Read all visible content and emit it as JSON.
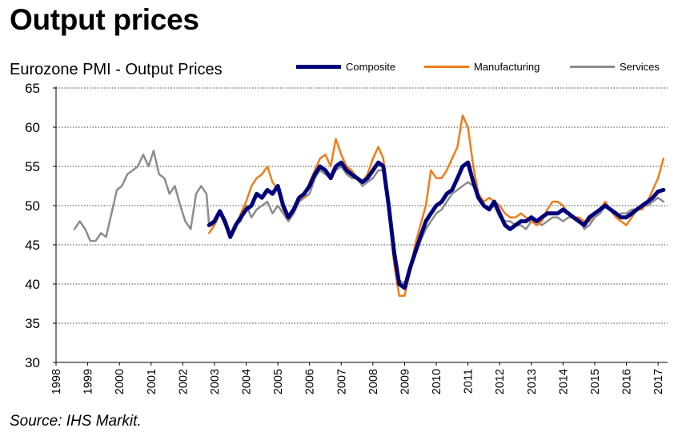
{
  "page": {
    "title": "Output prices",
    "source": "Source: IHS Markit."
  },
  "chart_data": {
    "type": "line",
    "title": "Eurozone PMI - Output Prices",
    "xlabel": "",
    "ylabel": "",
    "xlim": [
      1998,
      2017.3
    ],
    "ylim": [
      30,
      65
    ],
    "y_ticks": [
      30,
      35,
      40,
      45,
      50,
      55,
      60,
      65
    ],
    "x_ticks": [
      "1998",
      "1999",
      "2000",
      "2001",
      "2002",
      "2003",
      "2004",
      "2005",
      "2006",
      "2007",
      "2008",
      "2009",
      "2010",
      "2011",
      "2012",
      "2013",
      "2014",
      "2015",
      "2016",
      "2017"
    ],
    "grid": "horizontal-dotted",
    "legend_position": "top-right",
    "series": [
      {
        "name": "Composite",
        "color": "#00007a",
        "x": [
          2002.83,
          2003.0,
          2003.17,
          2003.33,
          2003.5,
          2003.67,
          2003.83,
          2004.0,
          2004.17,
          2004.33,
          2004.5,
          2004.67,
          2004.83,
          2005.0,
          2005.17,
          2005.33,
          2005.5,
          2005.67,
          2005.83,
          2006.0,
          2006.17,
          2006.33,
          2006.5,
          2006.67,
          2006.83,
          2007.0,
          2007.17,
          2007.33,
          2007.5,
          2007.67,
          2007.83,
          2008.0,
          2008.17,
          2008.33,
          2008.5,
          2008.67,
          2008.83,
          2009.0,
          2009.17,
          2009.33,
          2009.5,
          2009.67,
          2009.83,
          2010.0,
          2010.17,
          2010.33,
          2010.5,
          2010.67,
          2010.83,
          2011.0,
          2011.17,
          2011.33,
          2011.5,
          2011.67,
          2011.83,
          2012.0,
          2012.17,
          2012.33,
          2012.5,
          2012.67,
          2012.83,
          2013.0,
          2013.17,
          2013.33,
          2013.5,
          2013.67,
          2013.83,
          2014.0,
          2014.17,
          2014.33,
          2014.5,
          2014.67,
          2014.83,
          2015.0,
          2015.17,
          2015.33,
          2015.5,
          2015.67,
          2015.83,
          2016.0,
          2016.17,
          2016.33,
          2016.5,
          2016.67,
          2016.83,
          2017.0,
          2017.17
        ],
        "values": [
          47.5,
          48.0,
          49.3,
          48.0,
          46.0,
          47.5,
          48.5,
          49.5,
          50.0,
          51.5,
          51.0,
          52.0,
          51.5,
          52.5,
          50.0,
          48.5,
          49.5,
          51.0,
          51.5,
          52.5,
          54.0,
          55.0,
          54.5,
          53.5,
          55.0,
          55.5,
          54.5,
          54.0,
          53.5,
          53.0,
          53.5,
          54.5,
          55.5,
          55.0,
          50.0,
          44.0,
          40.0,
          39.5,
          42.0,
          44.0,
          46.0,
          48.0,
          49.0,
          50.0,
          50.5,
          51.5,
          52.0,
          53.5,
          55.0,
          55.5,
          53.0,
          51.0,
          50.0,
          49.5,
          50.5,
          49.0,
          47.5,
          47.0,
          47.5,
          48.0,
          48.0,
          48.5,
          48.0,
          48.5,
          49.0,
          49.0,
          49.0,
          49.5,
          49.0,
          48.5,
          48.0,
          47.5,
          48.5,
          49.0,
          49.5,
          50.0,
          49.5,
          49.0,
          48.5,
          48.5,
          49.0,
          49.5,
          50.0,
          50.5,
          51.0,
          51.8,
          52.0
        ]
      },
      {
        "name": "Manufacturing",
        "color": "#f07d1a",
        "x": [
          2002.83,
          2003.0,
          2003.17,
          2003.33,
          2003.5,
          2003.67,
          2003.83,
          2004.0,
          2004.17,
          2004.33,
          2004.5,
          2004.67,
          2004.83,
          2005.0,
          2005.17,
          2005.33,
          2005.5,
          2005.67,
          2005.83,
          2006.0,
          2006.17,
          2006.33,
          2006.5,
          2006.67,
          2006.83,
          2007.0,
          2007.17,
          2007.33,
          2007.5,
          2007.67,
          2007.83,
          2008.0,
          2008.17,
          2008.33,
          2008.5,
          2008.67,
          2008.83,
          2009.0,
          2009.17,
          2009.33,
          2009.5,
          2009.67,
          2009.83,
          2010.0,
          2010.17,
          2010.33,
          2010.5,
          2010.67,
          2010.83,
          2011.0,
          2011.17,
          2011.33,
          2011.5,
          2011.67,
          2011.83,
          2012.0,
          2012.17,
          2012.33,
          2012.5,
          2012.67,
          2012.83,
          2013.0,
          2013.17,
          2013.33,
          2013.5,
          2013.67,
          2013.83,
          2014.0,
          2014.17,
          2014.33,
          2014.5,
          2014.67,
          2014.83,
          2015.0,
          2015.17,
          2015.33,
          2015.5,
          2015.67,
          2015.83,
          2016.0,
          2016.17,
          2016.33,
          2016.5,
          2016.67,
          2016.83,
          2017.0,
          2017.17
        ],
        "values": [
          46.5,
          47.5,
          49.0,
          48.0,
          46.0,
          47.0,
          49.0,
          50.5,
          52.5,
          53.5,
          54.0,
          55.0,
          53.0,
          52.0,
          49.5,
          48.5,
          49.5,
          51.0,
          51.0,
          53.0,
          54.5,
          56.0,
          56.5,
          55.0,
          58.5,
          56.5,
          55.0,
          54.5,
          53.5,
          53.0,
          54.0,
          56.0,
          57.5,
          56.0,
          50.0,
          42.5,
          38.5,
          38.5,
          41.5,
          45.0,
          47.5,
          50.0,
          54.5,
          53.5,
          53.5,
          54.5,
          56.0,
          57.5,
          61.5,
          60.0,
          55.0,
          51.5,
          50.5,
          51.0,
          50.5,
          50.0,
          49.0,
          48.5,
          48.5,
          49.0,
          48.5,
          48.0,
          47.5,
          48.0,
          49.5,
          50.5,
          50.5,
          50.0,
          49.0,
          48.5,
          48.5,
          48.0,
          48.0,
          49.0,
          49.5,
          50.5,
          49.5,
          48.5,
          48.0,
          47.5,
          48.5,
          49.5,
          49.5,
          50.5,
          52.0,
          53.5,
          56.0
        ]
      },
      {
        "name": "Services",
        "color": "#8c8c8c",
        "x": [
          1998.58,
          1998.75,
          1998.92,
          1999.08,
          1999.25,
          1999.42,
          1999.58,
          1999.75,
          1999.92,
          2000.08,
          2000.25,
          2000.42,
          2000.58,
          2000.75,
          2000.92,
          2001.08,
          2001.25,
          2001.42,
          2001.58,
          2001.75,
          2001.92,
          2002.08,
          2002.25,
          2002.42,
          2002.58,
          2002.75,
          2002.83,
          2003.0,
          2003.17,
          2003.33,
          2003.5,
          2003.67,
          2003.83,
          2004.0,
          2004.17,
          2004.33,
          2004.5,
          2004.67,
          2004.83,
          2005.0,
          2005.17,
          2005.33,
          2005.5,
          2005.67,
          2005.83,
          2006.0,
          2006.17,
          2006.33,
          2006.5,
          2006.67,
          2006.83,
          2007.0,
          2007.17,
          2007.33,
          2007.5,
          2007.67,
          2007.83,
          2008.0,
          2008.17,
          2008.33,
          2008.5,
          2008.67,
          2008.83,
          2009.0,
          2009.17,
          2009.33,
          2009.5,
          2009.67,
          2009.83,
          2010.0,
          2010.17,
          2010.33,
          2010.5,
          2010.67,
          2010.83,
          2011.0,
          2011.17,
          2011.33,
          2011.5,
          2011.67,
          2011.83,
          2012.0,
          2012.17,
          2012.33,
          2012.5,
          2012.67,
          2012.83,
          2013.0,
          2013.17,
          2013.33,
          2013.5,
          2013.67,
          2013.83,
          2014.0,
          2014.17,
          2014.33,
          2014.5,
          2014.67,
          2014.83,
          2015.0,
          2015.17,
          2015.33,
          2015.5,
          2015.67,
          2015.83,
          2016.0,
          2016.17,
          2016.33,
          2016.5,
          2016.67,
          2016.83,
          2017.0,
          2017.17
        ],
        "values": [
          47.0,
          48.0,
          47.0,
          45.5,
          45.5,
          46.5,
          46.0,
          49.0,
          52.0,
          52.5,
          54.0,
          54.5,
          55.0,
          56.5,
          55.0,
          57.0,
          54.0,
          53.5,
          51.5,
          52.5,
          50.0,
          48.0,
          47.0,
          51.5,
          52.5,
          51.5,
          47.5,
          47.5,
          49.0,
          47.5,
          46.0,
          47.5,
          48.0,
          50.0,
          48.5,
          49.5,
          50.0,
          50.5,
          49.0,
          50.0,
          49.0,
          48.0,
          49.0,
          50.5,
          51.0,
          51.5,
          53.5,
          54.5,
          54.0,
          53.5,
          54.5,
          55.0,
          54.0,
          53.5,
          53.5,
          52.5,
          53.0,
          53.5,
          54.5,
          54.5,
          49.5,
          45.0,
          40.5,
          40.0,
          42.0,
          43.5,
          45.5,
          47.0,
          48.0,
          49.0,
          49.5,
          50.5,
          51.5,
          52.0,
          52.5,
          53.0,
          52.5,
          51.0,
          50.0,
          49.5,
          50.0,
          48.5,
          48.0,
          48.0,
          47.5,
          47.5,
          47.0,
          48.0,
          48.0,
          47.5,
          48.0,
          48.5,
          48.5,
          48.0,
          48.5,
          48.5,
          48.5,
          47.0,
          47.5,
          48.5,
          49.0,
          50.0,
          49.5,
          48.5,
          49.0,
          49.0,
          49.5,
          49.5,
          50.0,
          50.0,
          50.5,
          51.0,
          50.5
        ]
      }
    ]
  }
}
